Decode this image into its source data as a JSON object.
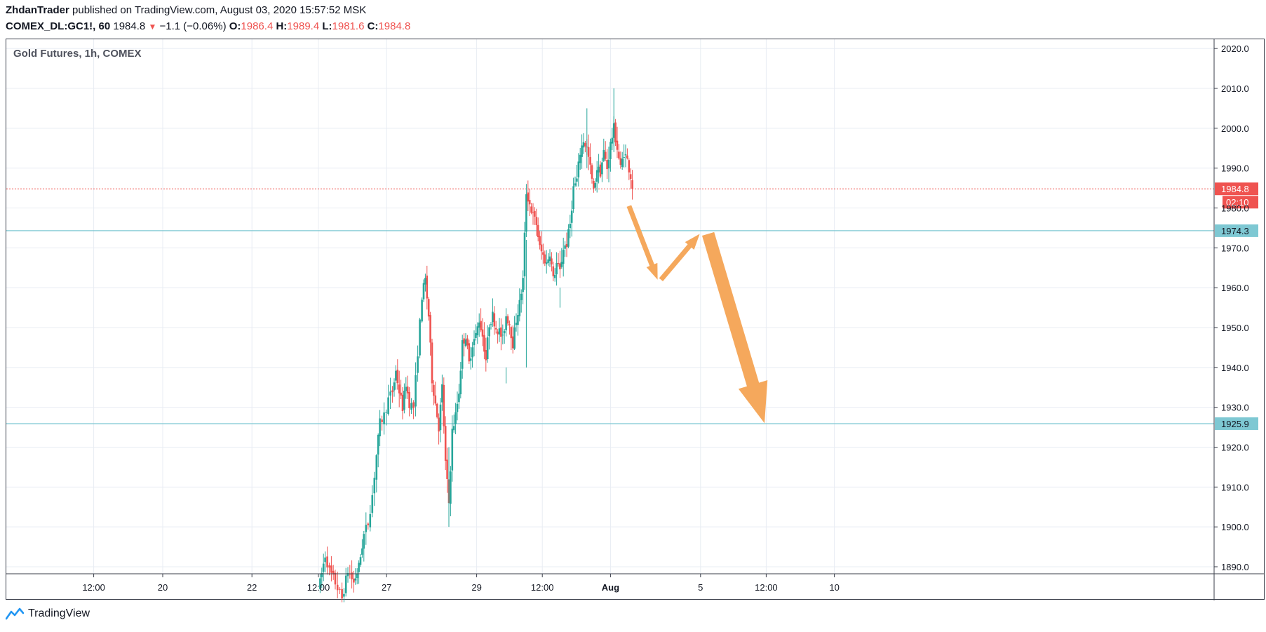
{
  "header": {
    "author": "ZhdanTrader",
    "published_text": "published on TradingView.com, August 03, 2020 15:57:52 MSK",
    "symbol": "COMEX_DL:GC1!, 60",
    "last": "1984.8",
    "change": "−1.1 (−0.06%)",
    "o_label": "O:",
    "o_val": "1986.4",
    "h_label": "H:",
    "h_val": "1989.4",
    "l_label": "L:",
    "l_val": "1981.6",
    "c_label": "C:",
    "c_val": "1984.8"
  },
  "chart_title": "Gold Futures, 1h, COMEX",
  "footer": {
    "brand": "TradingView"
  },
  "colors": {
    "up": "#26a69a",
    "down": "#ef5350",
    "level": "#7ec8d3",
    "arrow": "#f5a85c",
    "grid": "#e8ecf3"
  },
  "chart_data": {
    "type": "candlestick",
    "title": "Gold Futures, 1h, COMEX",
    "ylim": [
      1888,
      2030
    ],
    "xlim": [
      0,
      1090
    ],
    "y_ticks": [
      1890.0,
      1900.0,
      1910.0,
      1920.0,
      1930.0,
      1940.0,
      1950.0,
      1960.0,
      1970.0,
      1980.0,
      1990.0,
      2000.0,
      2010.0,
      2020.0
    ],
    "y_tick_labels": [
      "1890.0",
      "1900.0",
      "1910.0",
      "1920.0",
      "1930.0",
      "1940.0",
      "1950.0",
      "1960.0",
      "1970.0",
      "1980.0",
      "1990.0",
      "2000.0",
      "2010.0",
      "2020.0"
    ],
    "x_ticks": [
      {
        "x": 78,
        "label": "12:00"
      },
      {
        "x": 160,
        "label": "20"
      },
      {
        "x": 266,
        "label": "22"
      },
      {
        "x": 345,
        "label": "12:00"
      },
      {
        "x": 426,
        "label": "27"
      },
      {
        "x": 533,
        "label": "29"
      },
      {
        "x": 611,
        "label": "12:00"
      },
      {
        "x": 692,
        "label": "Aug",
        "bold": true
      },
      {
        "x": 799,
        "label": "5"
      },
      {
        "x": 877,
        "label": "12:00"
      },
      {
        "x": 958,
        "label": "10"
      }
    ],
    "last_price": 1984.8,
    "last_price_label": "1984.8",
    "countdown": "02:10",
    "levels": [
      1974.3,
      1925.9
    ],
    "level_labels": [
      "1974.3",
      "1925.9"
    ],
    "arrows": [
      {
        "from": [
          714,
          1980.5
        ],
        "to": [
          748,
          1962.0
        ],
        "width": 7
      },
      {
        "from": [
          752,
          1962.0
        ],
        "to": [
          798,
          1973.5
        ],
        "width": 7
      },
      {
        "from": [
          808,
          1973.5
        ],
        "to": [
          875,
          1926.0
        ],
        "width": 18
      }
    ],
    "anchors": [
      [
        347,
        1886
      ],
      [
        353,
        1893
      ],
      [
        358,
        1889
      ],
      [
        365,
        1886
      ],
      [
        373,
        1882
      ],
      [
        380,
        1889
      ],
      [
        387,
        1886
      ],
      [
        393,
        1890
      ],
      [
        399,
        1898
      ],
      [
        404,
        1901
      ],
      [
        409,
        1908
      ],
      [
        414,
        1918
      ],
      [
        418,
        1926
      ],
      [
        423,
        1928
      ],
      [
        428,
        1932
      ],
      [
        433,
        1934
      ],
      [
        437,
        1939
      ],
      [
        441,
        1934
      ],
      [
        445,
        1930
      ],
      [
        449,
        1936
      ],
      [
        453,
        1931
      ],
      [
        458,
        1930
      ],
      [
        463,
        1944
      ],
      [
        468,
        1958
      ],
      [
        472,
        1962
      ],
      [
        476,
        1953
      ],
      [
        480,
        1937
      ],
      [
        484,
        1931
      ],
      [
        488,
        1925
      ],
      [
        492,
        1935
      ],
      [
        496,
        1916
      ],
      [
        500,
        1906
      ],
      [
        504,
        1924
      ],
      [
        508,
        1928
      ],
      [
        512,
        1934
      ],
      [
        516,
        1946
      ],
      [
        520,
        1948
      ],
      [
        524,
        1941
      ],
      [
        528,
        1946
      ],
      [
        532,
        1948
      ],
      [
        536,
        1952
      ],
      [
        540,
        1948
      ],
      [
        544,
        1942
      ],
      [
        548,
        1951
      ],
      [
        552,
        1953
      ],
      [
        556,
        1950
      ],
      [
        560,
        1949
      ],
      [
        564,
        1947
      ],
      [
        568,
        1953
      ],
      [
        572,
        1951
      ],
      [
        576,
        1946
      ],
      [
        580,
        1952
      ],
      [
        584,
        1956
      ],
      [
        588,
        1962
      ],
      [
        592,
        1984
      ],
      [
        596,
        1981
      ],
      [
        600,
        1978
      ],
      [
        604,
        1976
      ],
      [
        608,
        1970
      ],
      [
        612,
        1968
      ],
      [
        616,
        1966
      ],
      [
        620,
        1969
      ],
      [
        624,
        1962
      ],
      [
        628,
        1966
      ],
      [
        632,
        1964
      ],
      [
        636,
        1970
      ],
      [
        640,
        1971
      ],
      [
        644,
        1976
      ],
      [
        648,
        1985
      ],
      [
        652,
        1987
      ],
      [
        656,
        1994
      ],
      [
        660,
        1997
      ],
      [
        664,
        1995
      ],
      [
        668,
        1990
      ],
      [
        672,
        1984
      ],
      [
        676,
        1990
      ],
      [
        680,
        1989
      ],
      [
        684,
        1994
      ],
      [
        688,
        1990
      ],
      [
        692,
        1996
      ],
      [
        696,
        2000
      ],
      [
        700,
        1995
      ],
      [
        704,
        1990
      ],
      [
        708,
        1994
      ],
      [
        712,
        1992
      ],
      [
        716,
        1988
      ],
      [
        718,
        1984.8
      ]
    ]
  }
}
